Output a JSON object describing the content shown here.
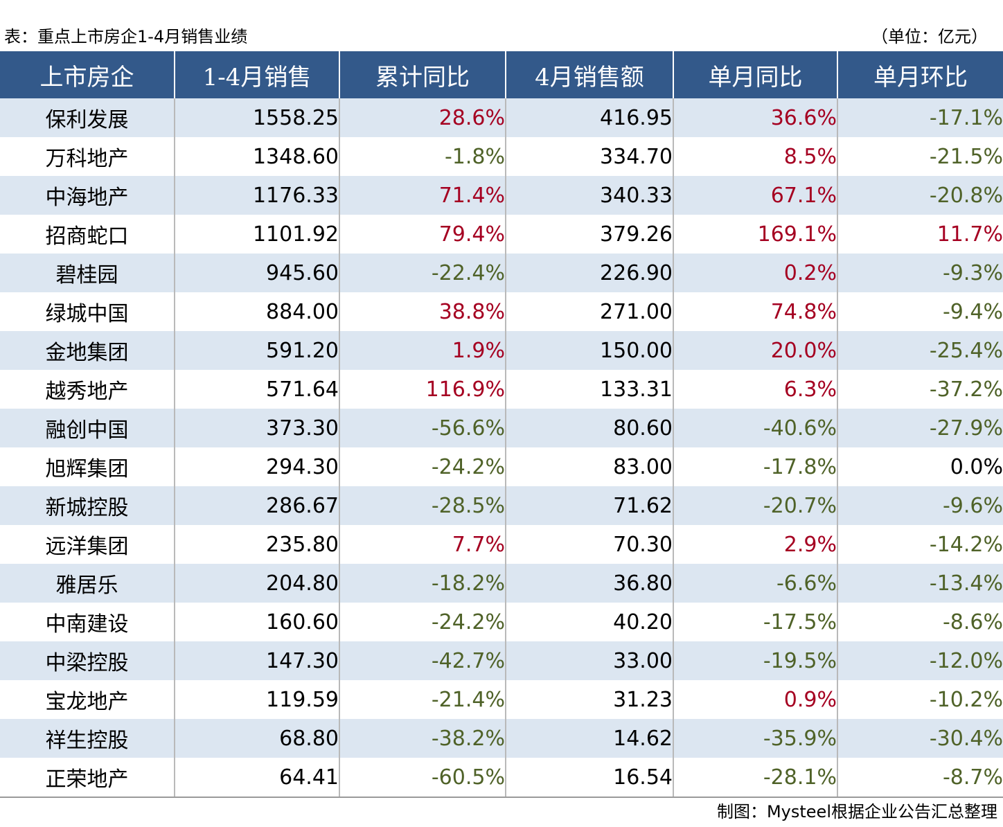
{
  "caption": {
    "title": "表：重点上市房企1-4月销售业绩",
    "unit": "（单位：亿元）"
  },
  "headers": [
    "上市房企",
    "1-4月销售",
    "累计同比",
    "4月销售额",
    "单月同比",
    "单月环比"
  ],
  "rows": [
    {
      "company": "保利发展",
      "ytd_sales": "1558.25",
      "ytd_yoy": "28.6%",
      "apr_sales": "416.95",
      "apr_yoy": "36.6%",
      "apr_mom": "-17.1%"
    },
    {
      "company": "万科地产",
      "ytd_sales": "1348.60",
      "ytd_yoy": "-1.8%",
      "apr_sales": "334.70",
      "apr_yoy": "8.5%",
      "apr_mom": "-21.5%"
    },
    {
      "company": "中海地产",
      "ytd_sales": "1176.33",
      "ytd_yoy": "71.4%",
      "apr_sales": "340.33",
      "apr_yoy": "67.1%",
      "apr_mom": "-20.8%"
    },
    {
      "company": "招商蛇口",
      "ytd_sales": "1101.92",
      "ytd_yoy": "79.4%",
      "apr_sales": "379.26",
      "apr_yoy": "169.1%",
      "apr_mom": "11.7%"
    },
    {
      "company": "碧桂园",
      "ytd_sales": "945.60",
      "ytd_yoy": "-22.4%",
      "apr_sales": "226.90",
      "apr_yoy": "0.2%",
      "apr_mom": "-9.3%"
    },
    {
      "company": "绿城中国",
      "ytd_sales": "884.00",
      "ytd_yoy": "38.8%",
      "apr_sales": "271.00",
      "apr_yoy": "74.8%",
      "apr_mom": "-9.4%"
    },
    {
      "company": "金地集团",
      "ytd_sales": "591.20",
      "ytd_yoy": "1.9%",
      "apr_sales": "150.00",
      "apr_yoy": "20.0%",
      "apr_mom": "-25.4%"
    },
    {
      "company": "越秀地产",
      "ytd_sales": "571.64",
      "ytd_yoy": "116.9%",
      "apr_sales": "133.31",
      "apr_yoy": "6.3%",
      "apr_mom": "-37.2%"
    },
    {
      "company": "融创中国",
      "ytd_sales": "373.30",
      "ytd_yoy": "-56.6%",
      "apr_sales": "80.60",
      "apr_yoy": "-40.6%",
      "apr_mom": "-27.9%"
    },
    {
      "company": "旭辉集团",
      "ytd_sales": "294.30",
      "ytd_yoy": "-24.2%",
      "apr_sales": "83.00",
      "apr_yoy": "-17.8%",
      "apr_mom": "0.0%"
    },
    {
      "company": "新城控股",
      "ytd_sales": "286.67",
      "ytd_yoy": "-28.5%",
      "apr_sales": "71.62",
      "apr_yoy": "-20.7%",
      "apr_mom": "-9.6%"
    },
    {
      "company": "远洋集团",
      "ytd_sales": "235.80",
      "ytd_yoy": "7.7%",
      "apr_sales": "70.30",
      "apr_yoy": "2.9%",
      "apr_mom": "-14.2%"
    },
    {
      "company": "雅居乐",
      "ytd_sales": "204.80",
      "ytd_yoy": "-18.2%",
      "apr_sales": "36.80",
      "apr_yoy": "-6.6%",
      "apr_mom": "-13.4%"
    },
    {
      "company": "中南建设",
      "ytd_sales": "160.60",
      "ytd_yoy": "-24.2%",
      "apr_sales": "40.20",
      "apr_yoy": "-17.5%",
      "apr_mom": "-8.6%"
    },
    {
      "company": "中梁控股",
      "ytd_sales": "147.30",
      "ytd_yoy": "-42.7%",
      "apr_sales": "33.00",
      "apr_yoy": "-19.5%",
      "apr_mom": "-12.0%"
    },
    {
      "company": "宝龙地产",
      "ytd_sales": "119.59",
      "ytd_yoy": "-21.4%",
      "apr_sales": "31.23",
      "apr_yoy": "0.9%",
      "apr_mom": "-10.2%"
    },
    {
      "company": "祥生控股",
      "ytd_sales": "68.80",
      "ytd_yoy": "-38.2%",
      "apr_sales": "14.62",
      "apr_yoy": "-35.9%",
      "apr_mom": "-30.4%"
    },
    {
      "company": "正荣地产",
      "ytd_sales": "64.41",
      "ytd_yoy": "-60.5%",
      "apr_sales": "16.54",
      "apr_yoy": "-28.1%",
      "apr_mom": "-8.7%"
    }
  ],
  "source": "制图：Mysteel根据企业公告汇总整理",
  "colors": {
    "header_bg": "#33598a",
    "band_bg": "#dce6f1",
    "positive": "#a50021",
    "negative": "#4f6228"
  }
}
